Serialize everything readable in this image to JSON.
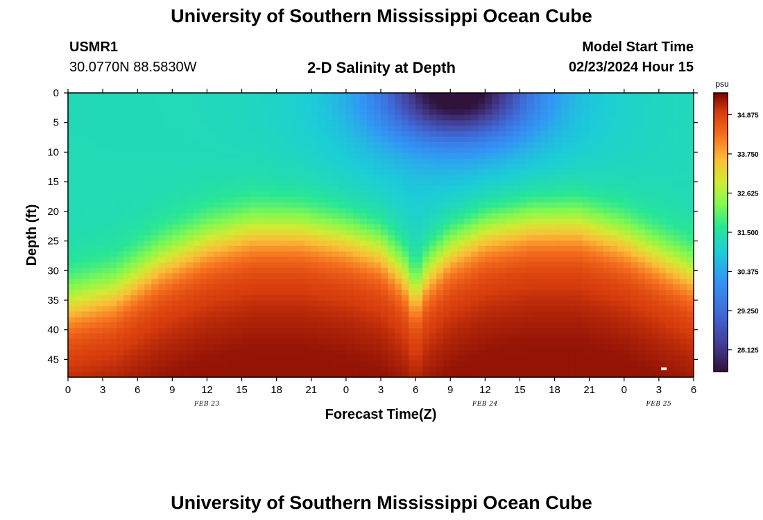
{
  "page": {
    "title_top": "University of Southern Mississippi Ocean Cube",
    "title_bottom": "University of Southern Mississippi Ocean Cube",
    "station_id": "USMR1",
    "coordinates": "30.0770N  88.5830W",
    "plot_title": "2-D Salinity at Depth",
    "model_label": "Model Start Time",
    "model_time": "02/23/2024 Hour 15"
  },
  "chart_data": {
    "type": "heatmap",
    "title": "2-D Salinity at Depth",
    "xlabel": "Forecast Time(Z)",
    "ylabel": "Depth (ft)",
    "x_ticks": [
      "0",
      "3",
      "6",
      "9",
      "12",
      "15",
      "18",
      "21",
      "0",
      "3",
      "6",
      "9",
      "12",
      "15",
      "18",
      "21",
      "0",
      "3",
      "6"
    ],
    "x_range_hours": [
      0,
      54
    ],
    "day_labels": [
      {
        "label": "FEB 23",
        "hour": 12
      },
      {
        "label": "FEB 24",
        "hour": 36
      },
      {
        "label": "FEB 25",
        "hour": 51
      }
    ],
    "y_ticks": [
      0,
      5,
      10,
      15,
      20,
      25,
      30,
      35,
      40,
      45
    ],
    "ylim": [
      0,
      48
    ],
    "colorbar": {
      "unit": "psu",
      "range": [
        27.5,
        35.5
      ],
      "ticks": [
        "34.875",
        "33.750",
        "32.625",
        "31.500",
        "30.375",
        "29.250",
        "28.125"
      ]
    },
    "model": {
      "halocline_depth_ft": [
        {
          "hour": 0,
          "depth": 32
        },
        {
          "hour": 4,
          "depth": 30
        },
        {
          "hour": 8,
          "depth": 25
        },
        {
          "hour": 12,
          "depth": 21.5
        },
        {
          "hour": 16,
          "depth": 19.5
        },
        {
          "hour": 20,
          "depth": 19.5
        },
        {
          "hour": 24,
          "depth": 21
        },
        {
          "hour": 27,
          "depth": 23
        },
        {
          "hour": 29,
          "depth": 27
        },
        {
          "hour": 30,
          "depth": 31
        },
        {
          "hour": 31,
          "depth": 27
        },
        {
          "hour": 33,
          "depth": 23
        },
        {
          "hour": 36,
          "depth": 20
        },
        {
          "hour": 40,
          "depth": 18.5
        },
        {
          "hour": 44,
          "depth": 18.5
        },
        {
          "hour": 48,
          "depth": 21
        },
        {
          "hour": 51,
          "depth": 24
        },
        {
          "hour": 54,
          "depth": 27
        }
      ],
      "surface_salinity_psu": 31.3,
      "bottom_salinity_psu": 35.1,
      "fresh_core": {
        "hour": 33.5,
        "depth": 0,
        "salinity_psu": 28.0
      }
    }
  }
}
